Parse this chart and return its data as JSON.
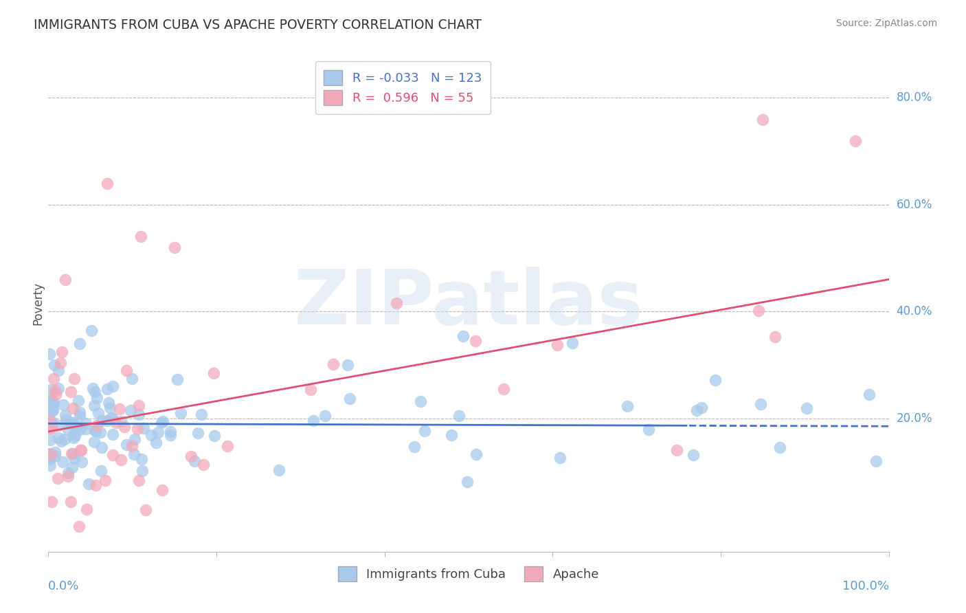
{
  "title": "IMMIGRANTS FROM CUBA VS APACHE POVERTY CORRELATION CHART",
  "source_text": "Source: ZipAtlas.com",
  "ylabel": "Poverty",
  "ytick_vals": [
    0.2,
    0.4,
    0.6,
    0.8
  ],
  "ytick_labels": [
    "20.0%",
    "40.0%",
    "60.0%",
    "80.0%"
  ],
  "xlim": [
    0.0,
    1.0
  ],
  "ylim": [
    -0.05,
    0.88
  ],
  "blue_R": -0.033,
  "blue_N": 123,
  "pink_R": 0.596,
  "pink_N": 55,
  "blue_color": "#A8CAEC",
  "pink_color": "#F2AABA",
  "blue_line_color": "#4472C4",
  "pink_line_color": "#E05070",
  "legend_label_blue": "Immigrants from Cuba",
  "legend_label_pink": "Apache",
  "watermark": "ZIPatlas",
  "background_color": "#FFFFFF",
  "blue_line_intercept": 0.19,
  "blue_line_slope": -0.005,
  "blue_line_solid_end": 0.76,
  "pink_line_intercept": 0.175,
  "pink_line_slope": 0.285,
  "axis_color": "#5B9BD5",
  "grid_color": "#BBBBBB",
  "title_color": "#333333",
  "source_color": "#888888",
  "ylabel_color": "#555555"
}
